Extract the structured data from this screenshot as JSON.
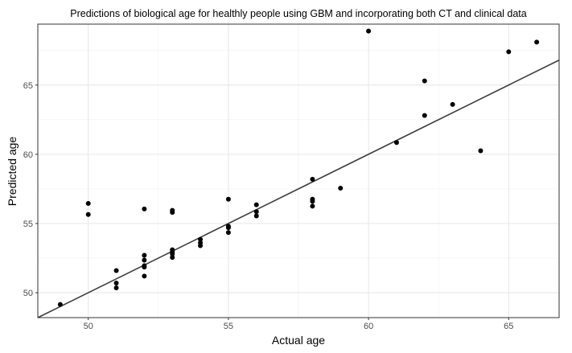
{
  "chart_data": {
    "type": "scatter",
    "title": "Predictions of biological age for healthly people using GBM and incorporating both CT and clinical data",
    "xlabel": "Actual age",
    "ylabel": "Predicted age",
    "xlim": [
      48.2,
      66.8
    ],
    "ylim": [
      48.2,
      69.4
    ],
    "x_ticks": [
      50,
      55,
      60,
      65
    ],
    "y_ticks": [
      50,
      55,
      60,
      65
    ],
    "grid": true,
    "legend": "none",
    "fit_line": {
      "slope": 1.0,
      "intercept": 0.0,
      "color": "#404040"
    },
    "point_color": "#000000",
    "points": [
      [
        49,
        49.15
      ],
      [
        50,
        56.45
      ],
      [
        50,
        55.65
      ],
      [
        51,
        51.6
      ],
      [
        51,
        50.7
      ],
      [
        51,
        50.35
      ],
      [
        52,
        56.05
      ],
      [
        52,
        52.7
      ],
      [
        52,
        52.35
      ],
      [
        52,
        51.95
      ],
      [
        52,
        51.85
      ],
      [
        52,
        51.2
      ],
      [
        53,
        55.95
      ],
      [
        53,
        55.8
      ],
      [
        53,
        53.1
      ],
      [
        53,
        52.95
      ],
      [
        53,
        52.8
      ],
      [
        53,
        52.55
      ],
      [
        54,
        53.85
      ],
      [
        54,
        53.6
      ],
      [
        54,
        53.4
      ],
      [
        55,
        56.75
      ],
      [
        55,
        54.8
      ],
      [
        55,
        54.7
      ],
      [
        55,
        54.35
      ],
      [
        56,
        56.35
      ],
      [
        56,
        55.85
      ],
      [
        56,
        55.55
      ],
      [
        58,
        58.2
      ],
      [
        58,
        56.75
      ],
      [
        58,
        56.6
      ],
      [
        58,
        56.25
      ],
      [
        59,
        57.55
      ],
      [
        60,
        68.9
      ],
      [
        61,
        60.85
      ],
      [
        62,
        65.3
      ],
      [
        62,
        62.8
      ],
      [
        63,
        63.6
      ],
      [
        64,
        60.25
      ],
      [
        65,
        67.4
      ],
      [
        66,
        68.1
      ]
    ]
  }
}
